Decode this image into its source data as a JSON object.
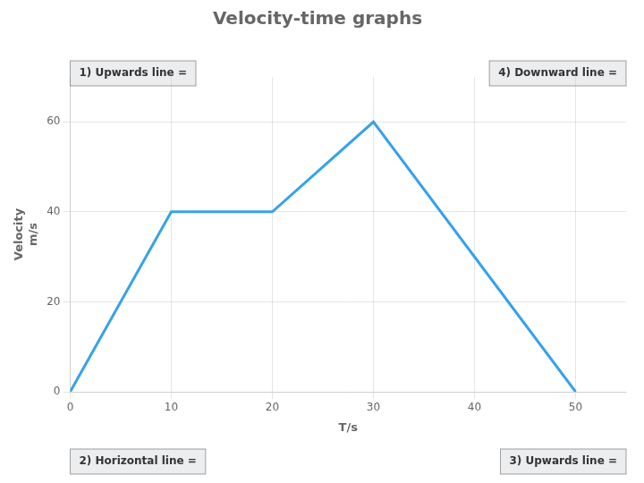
{
  "chart_data": {
    "type": "line",
    "title": "Velocity-time graphs",
    "xlabel": "T/s",
    "ylabel": [
      "Velocity",
      "m/s"
    ],
    "x": [
      0,
      10,
      20,
      30,
      50
    ],
    "values": [
      0,
      40,
      40,
      60,
      0
    ],
    "xlim": [
      0,
      55
    ],
    "ylim": [
      0,
      70
    ],
    "xticks": [
      0,
      10,
      20,
      30,
      40,
      50
    ],
    "yticks": [
      0,
      20,
      40,
      60
    ],
    "grid": true,
    "annotations": [
      "1) Upwards line =",
      "4) Downward line =",
      "2) Horizontal line =",
      "3) Upwards line ="
    ]
  }
}
